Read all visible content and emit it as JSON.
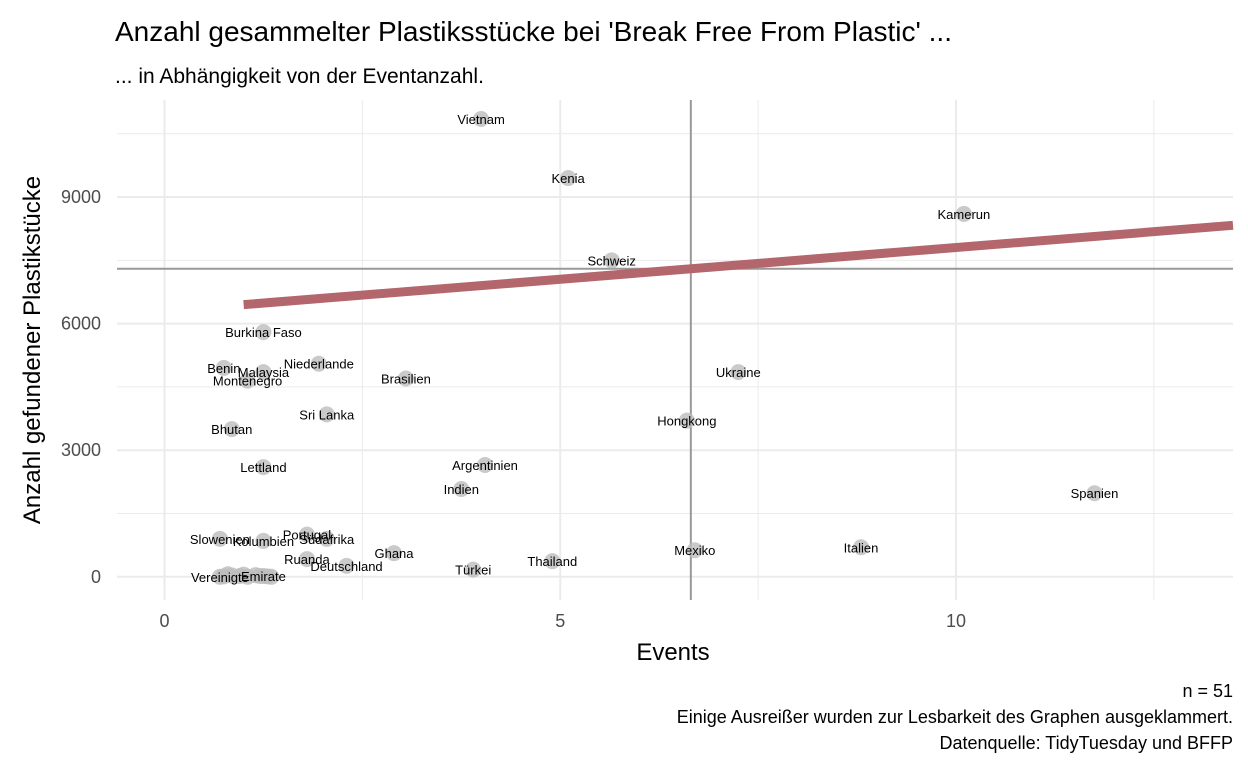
{
  "chart_data": {
    "type": "scatter",
    "title": "Anzahl gesammelter Plastiksstücke bei 'Break Free From Plastic' ...",
    "subtitle": "... in Abhängigkeit von der Eventanzahl.",
    "xlabel": "Events",
    "ylabel": "Anzahl gefundener Plastikstücke",
    "xlim": [
      -0.6,
      13.5
    ],
    "ylim": [
      -550,
      11300
    ],
    "x_ticks": [
      0,
      5,
      10
    ],
    "y_ticks": [
      0,
      3000,
      6000,
      9000
    ],
    "grid": true,
    "mean_x": 6.65,
    "mean_y": 7300,
    "trend_line": {
      "x": [
        1.0,
        13.5
      ],
      "y": [
        6450,
        8330
      ]
    },
    "points": [
      {
        "label": "Vietnam",
        "x": 4.0,
        "y": 10850
      },
      {
        "label": "Kenia",
        "x": 5.1,
        "y": 9450
      },
      {
        "label": "Kamerun",
        "x": 10.1,
        "y": 8600
      },
      {
        "label": "Schweiz",
        "x": 5.65,
        "y": 7500
      },
      {
        "label": "Burkina Faso",
        "x": 1.25,
        "y": 5800
      },
      {
        "label": "Niederlande",
        "x": 1.95,
        "y": 5050
      },
      {
        "label": "Benin",
        "x": 0.75,
        "y": 4950
      },
      {
        "label": "Malaysia",
        "x": 1.25,
        "y": 4850
      },
      {
        "label": "Montenegro",
        "x": 1.05,
        "y": 4650
      },
      {
        "label": "Brasilien",
        "x": 3.05,
        "y": 4700
      },
      {
        "label": "Ukraine",
        "x": 7.25,
        "y": 4850
      },
      {
        "label": "Sri Lanka",
        "x": 2.05,
        "y": 3850
      },
      {
        "label": "Hongkong",
        "x": 6.6,
        "y": 3700
      },
      {
        "label": "Bhutan",
        "x": 0.85,
        "y": 3500
      },
      {
        "label": "Argentinien",
        "x": 4.05,
        "y": 2650
      },
      {
        "label": "Lettland",
        "x": 1.25,
        "y": 2600
      },
      {
        "label": "Indien",
        "x": 3.75,
        "y": 2080
      },
      {
        "label": "Spanien",
        "x": 11.75,
        "y": 1980
      },
      {
        "label": "Portugal",
        "x": 1.8,
        "y": 1000
      },
      {
        "label": "Südafrika",
        "x": 2.05,
        "y": 900
      },
      {
        "label": "Slowenien",
        "x": 0.7,
        "y": 900
      },
      {
        "label": "Kolumbien",
        "x": 1.25,
        "y": 850
      },
      {
        "label": "Italien",
        "x": 8.8,
        "y": 700
      },
      {
        "label": "Mexiko",
        "x": 6.7,
        "y": 630
      },
      {
        "label": "Ghana",
        "x": 2.9,
        "y": 560
      },
      {
        "label": "Ruanda",
        "x": 1.8,
        "y": 420
      },
      {
        "label": "Thailand",
        "x": 4.9,
        "y": 370
      },
      {
        "label": "Deutschland",
        "x": 2.3,
        "y": 260
      },
      {
        "label": "Türkei",
        "x": 3.9,
        "y": 170
      },
      {
        "label": "Emirate",
        "x": 1.25,
        "y": 20
      },
      {
        "label": "Vereinigte",
        "x": 0.7,
        "y": 0
      },
      {
        "label": "",
        "x": 0.75,
        "y": 10
      },
      {
        "label": "",
        "x": 0.85,
        "y": 30
      },
      {
        "label": "",
        "x": 0.95,
        "y": 20
      },
      {
        "label": "",
        "x": 1.05,
        "y": 0
      },
      {
        "label": "",
        "x": 1.15,
        "y": 40
      },
      {
        "label": "",
        "x": 1.3,
        "y": 10
      },
      {
        "label": "",
        "x": 0.8,
        "y": 60
      },
      {
        "label": "",
        "x": 1.0,
        "y": 50
      },
      {
        "label": "",
        "x": 1.2,
        "y": 20
      },
      {
        "label": "",
        "x": 1.35,
        "y": 0
      }
    ],
    "caption": [
      "n = 51",
      "Einige Ausreißer wurden zur Lesbarkeit des Graphen ausgeklammert.",
      "Datenquelle: TidyTuesday und BFFP"
    ],
    "colors": {
      "point": "#bdbdbd",
      "trend": "#b3666b",
      "mean_line": "#999999",
      "grid": "#ebebeb"
    }
  }
}
